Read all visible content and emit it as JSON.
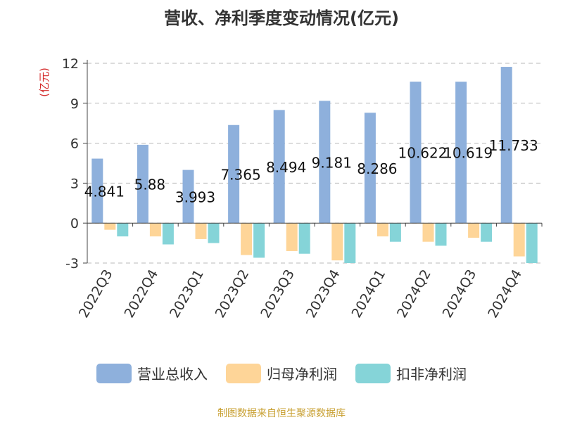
{
  "chart_data": {
    "type": "bar",
    "title": "营收、净利季度变动情况(亿元)",
    "ylabel": "(亿元)",
    "ylim": [
      -3,
      12
    ],
    "yticks": [
      -3,
      0,
      3,
      6,
      9,
      12
    ],
    "grid": true,
    "legend_position": "bottom",
    "categories": [
      "2022Q3",
      "2022Q4",
      "2023Q1",
      "2023Q2",
      "2023Q3",
      "2023Q4",
      "2024Q1",
      "2024Q2",
      "2024Q3",
      "2024Q4"
    ],
    "series": [
      {
        "name": "营业总收入",
        "color": "#8eb0dc",
        "values": [
          4.841,
          5.88,
          3.993,
          7.365,
          8.494,
          9.181,
          8.286,
          10.622,
          10.619,
          11.733
        ],
        "labels": [
          "4.841",
          "5.88",
          "3.993",
          "7.365",
          "8.494",
          "9.181",
          "8.286",
          "10.622",
          "10.619",
          "11.733"
        ]
      },
      {
        "name": "归母净利润",
        "color": "#fed598",
        "values": [
          -0.5,
          -1.0,
          -1.2,
          -2.4,
          -2.1,
          -2.8,
          -1.0,
          -1.4,
          -1.1,
          -2.5
        ]
      },
      {
        "name": "扣非净利润",
        "color": "#85d4d8",
        "values": [
          -1.0,
          -1.6,
          -1.5,
          -2.6,
          -2.3,
          -3.0,
          -1.4,
          -1.7,
          -1.4,
          -3.0
        ]
      }
    ]
  },
  "source_note": "制图数据来自恒生聚源数据库"
}
